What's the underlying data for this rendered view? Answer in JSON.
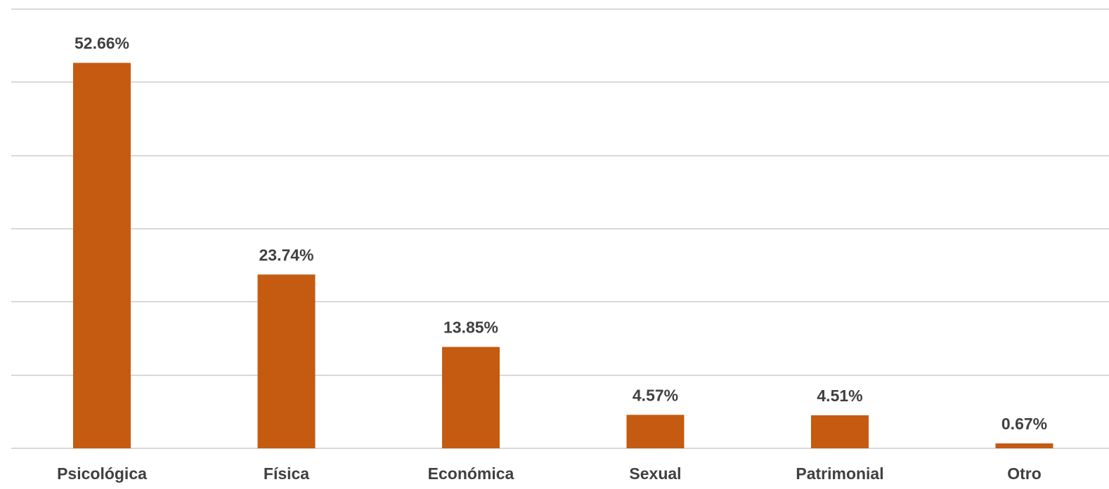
{
  "chart_data": {
    "type": "bar",
    "title": "",
    "xlabel": "",
    "ylabel": "",
    "categories": [
      "Psicológica",
      "Física",
      "Económica",
      "Sexual",
      "Patrimonial",
      "Otro"
    ],
    "values": [
      52.66,
      23.74,
      13.85,
      4.57,
      4.51,
      0.67
    ],
    "value_labels": [
      "52.66%",
      "23.74%",
      "13.85%",
      "4.57%",
      "4.51%",
      "0.67%"
    ],
    "ylim": [
      0,
      60
    ],
    "gridlines": [
      0,
      10,
      20,
      30,
      40,
      50,
      60
    ],
    "grid": true,
    "legend": "none",
    "bar_color": "#c55a11",
    "label_color": "#404040",
    "grid_color": "#d9d9d9"
  }
}
